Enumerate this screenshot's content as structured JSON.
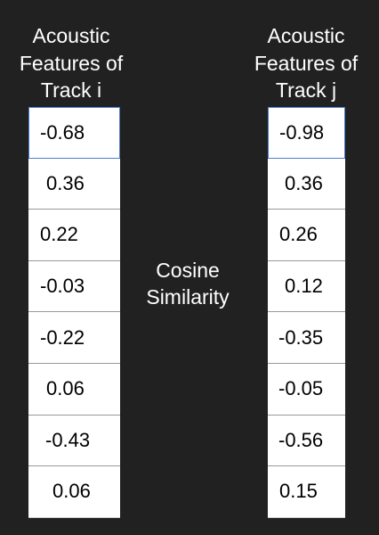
{
  "left_header": [
    "Acoustic",
    "Features of",
    "Track i"
  ],
  "right_header": [
    "Acoustic",
    "Features of",
    "Track j"
  ],
  "center_label": [
    "Cosine",
    "Similarity"
  ],
  "track_i": [
    "-0.68",
    "0.36",
    "0.22",
    "-0.03",
    "-0.22",
    "0.06",
    "-0.43",
    "0.06"
  ],
  "track_j": [
    "-0.98",
    "0.36",
    "0.26",
    "0.12",
    "-0.35",
    "-0.05",
    "-0.56",
    "0.15"
  ],
  "colors": {
    "background": "#212121",
    "cell_background": "#ffffff",
    "selected_border": "#4a7fd4",
    "cell_divider": "#999999"
  }
}
